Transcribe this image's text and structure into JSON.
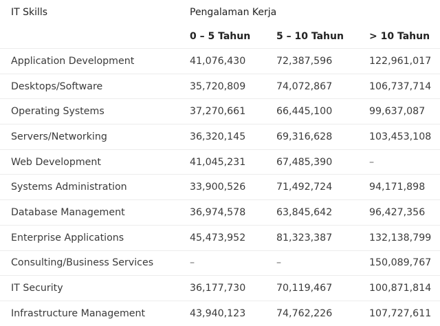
{
  "table": {
    "header_col0": "IT Skills",
    "header_group": "Pengalaman Kerja",
    "subheaders": [
      "0 – 5 Tahun",
      "5 – 10 Tahun",
      "> 10 Tahun"
    ],
    "rows": [
      {
        "skill": "Application Development",
        "v1": "41,076,430",
        "v2": "72,387,596",
        "v3": "122,961,017"
      },
      {
        "skill": "Desktops/Software",
        "v1": "35,720,809",
        "v2": "74,072,867",
        "v3": "106,737,714"
      },
      {
        "skill": "Operating Systems",
        "v1": "37,270,661",
        "v2": "66,445,100",
        "v3": "99,637,087"
      },
      {
        "skill": "Servers/Networking",
        "v1": "36,320,145",
        "v2": "69,316,628",
        "v3": "103,453,108"
      },
      {
        "skill": "Web Development",
        "v1": "41,045,231",
        "v2": "67,485,390",
        "v3": "–"
      },
      {
        "skill": "Systems Administration",
        "v1": "33,900,526",
        "v2": "71,492,724",
        "v3": "94,171,898"
      },
      {
        "skill": "Database Management",
        "v1": "36,974,578",
        "v2": "63,845,642",
        "v3": "96,427,356"
      },
      {
        "skill": "Enterprise Applications",
        "v1": "45,473,952",
        "v2": "81,323,387",
        "v3": "132,138,799"
      },
      {
        "skill": "Consulting/Business Services",
        "v1": "–",
        "v2": "–",
        "v3": "150,089,767"
      },
      {
        "skill": "IT Security",
        "v1": "36,177,730",
        "v2": "70,119,467",
        "v3": "100,871,814"
      },
      {
        "skill": "Infrastructure Management",
        "v1": "43,940,123",
        "v2": "74,762,226",
        "v3": "107,727,611"
      }
    ]
  }
}
